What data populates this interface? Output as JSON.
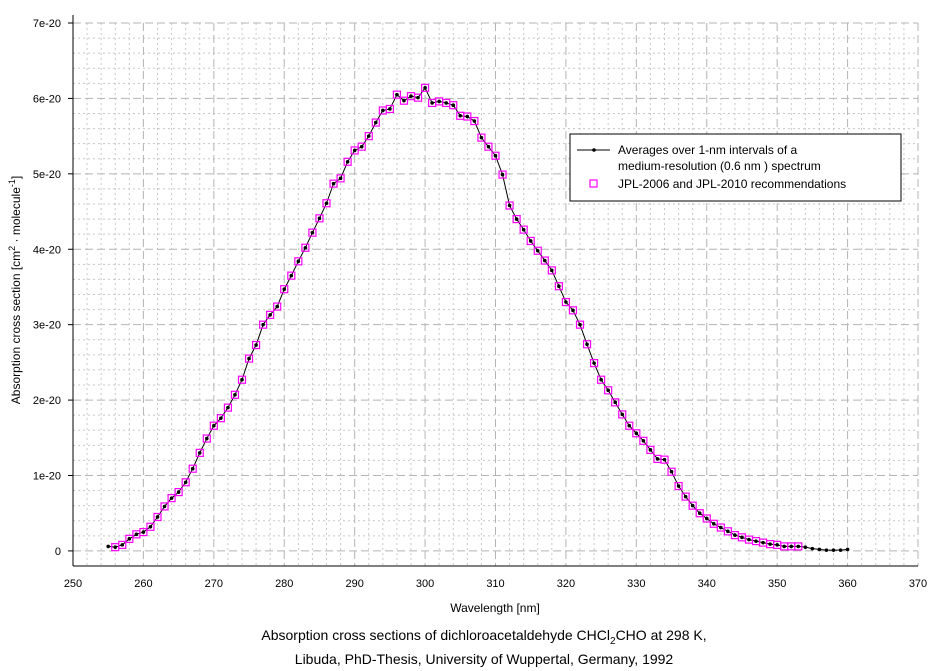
{
  "chart_data": {
    "type": "line",
    "title": "",
    "xlabel": "Wavelength [nm]",
    "ylabel_parts": {
      "a": "Absorption cross section [cm",
      "sup1": "2",
      "b": " · molecule",
      "sup2": "-1",
      "c": "]"
    },
    "xlim": [
      250,
      370
    ],
    "ylim": [
      -2e-21,
      7e-20
    ],
    "grid": true,
    "legend_position": "top-right",
    "x_ticks": [
      "250",
      "260",
      "270",
      "280",
      "290",
      "300",
      "310",
      "320",
      "330",
      "340",
      "350",
      "360",
      "370"
    ],
    "y_ticks": [
      "0",
      "1e-20",
      "2e-20",
      "3e-20",
      "4e-20",
      "5e-20",
      "6e-20",
      "7e-20"
    ],
    "y_scale": 1e-20,
    "series": [
      {
        "name": "Averages over 1-nm intervals of a medium-resolution (0.6 nm ) spectrum",
        "legend_lines": [
          "Averages over 1-nm intervals of a",
          "medium-resolution (0.6 nm ) spectrum"
        ],
        "style": "line-with-dots",
        "color": "#000000",
        "x_start": 255,
        "x_step": 1,
        "y": [
          0.06,
          0.05,
          0.08,
          0.16,
          0.22,
          0.25,
          0.32,
          0.45,
          0.59,
          0.7,
          0.78,
          0.91,
          1.09,
          1.3,
          1.49,
          1.66,
          1.76,
          1.9,
          2.07,
          2.27,
          2.55,
          2.73,
          3.0,
          3.13,
          3.24,
          3.47,
          3.65,
          3.84,
          4.02,
          4.22,
          4.41,
          4.61,
          4.87,
          4.94,
          5.16,
          5.31,
          5.36,
          5.5,
          5.68,
          5.84,
          5.86,
          6.05,
          5.97,
          6.03,
          6.01,
          6.14,
          5.94,
          5.96,
          5.94,
          5.91,
          5.77,
          5.76,
          5.7,
          5.48,
          5.36,
          5.24,
          4.99,
          4.58,
          4.4,
          4.26,
          4.11,
          3.98,
          3.85,
          3.72,
          3.51,
          3.3,
          3.19,
          3.0,
          2.74,
          2.49,
          2.27,
          2.13,
          1.97,
          1.81,
          1.66,
          1.56,
          1.46,
          1.34,
          1.22,
          1.21,
          1.05,
          0.86,
          0.72,
          0.6,
          0.5,
          0.43,
          0.36,
          0.31,
          0.26,
          0.21,
          0.18,
          0.15,
          0.13,
          0.11,
          0.09,
          0.08,
          0.06,
          0.06,
          0.06,
          0.05,
          0.03,
          0.02,
          0.01,
          0.01,
          0.01,
          0.02
        ]
      },
      {
        "name": "JPL-2006 and JPL-2010 recommendations",
        "style": "open-square",
        "color": "#ff00ff",
        "x_range": [
          256,
          353
        ]
      }
    ],
    "caption": {
      "line1_a": "Absorption cross sections of dichloroacetaldehyde CHCl",
      "line1_sub": "2",
      "line1_b": "CHO at 298 K,",
      "line2": "Libuda, PhD-Thesis, University of Wuppertal, Germany, 1992"
    }
  }
}
